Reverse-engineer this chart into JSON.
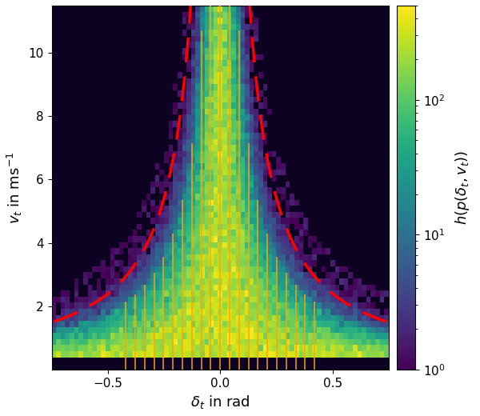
{
  "xlabel": "$\\delta_t$ in rad",
  "ylabel": "$v_t$ in ms$^{-1}$",
  "colorbar_label": "$h(p(\\delta_t, v_t))$",
  "xlim": [
    -0.75,
    0.75
  ],
  "ylim": [
    0,
    11.5
  ],
  "delta_range": [
    -0.75,
    0.75
  ],
  "v_range": [
    0,
    11.5
  ],
  "cmap": "viridis",
  "vmin": 1,
  "vmax": 500,
  "red_dashed_color": "#ff0000",
  "orange_line_color": "#ffa500",
  "num_delta_bins": 75,
  "num_v_bins": 60,
  "label_fontsize": 13,
  "tick_fontsize": 11,
  "n_discrete_delta": 21,
  "discrete_delta_max": 0.42,
  "boundary_k": 0.9,
  "boundary_alpha": 1.0,
  "red_curve_k": 1.05,
  "red_curve_alpha": 0.85
}
